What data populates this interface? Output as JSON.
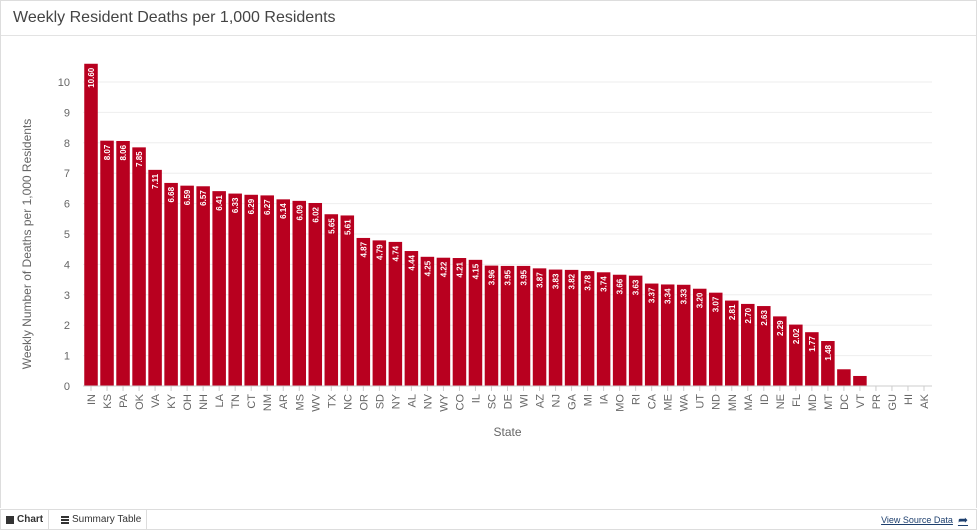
{
  "header": {
    "title": "Weekly Resident Deaths per 1,000 Residents"
  },
  "footer": {
    "chart_tab": "Chart",
    "table_tab": "Summary Table",
    "source_link": "View Source Data"
  },
  "colors": {
    "bar": "#b8001f",
    "grid": "#eeeeee"
  },
  "chart_data": {
    "type": "bar",
    "xlabel": "State",
    "ylabel": "Weekly Number of Deaths per 1,000 Residents",
    "ylim": [
      0,
      10
    ],
    "yticks": [
      0,
      1,
      2,
      3,
      4,
      5,
      6,
      7,
      8,
      9,
      10
    ],
    "categories": [
      "IN",
      "KS",
      "PA",
      "OK",
      "VA",
      "KY",
      "OH",
      "NH",
      "LA",
      "TN",
      "CT",
      "NM",
      "AR",
      "MS",
      "WV",
      "TX",
      "NC",
      "OR",
      "SD",
      "NY",
      "AL",
      "NV",
      "WY",
      "CO",
      "IL",
      "SC",
      "DE",
      "WI",
      "AZ",
      "NJ",
      "GA",
      "MI",
      "IA",
      "MO",
      "RI",
      "CA",
      "ME",
      "WA",
      "UT",
      "ND",
      "MN",
      "MA",
      "ID",
      "NE",
      "FL",
      "MD",
      "MT",
      "DC",
      "VT",
      "PR",
      "GU",
      "HI",
      "AK"
    ],
    "values": [
      10.6,
      8.07,
      8.06,
      7.85,
      7.11,
      6.68,
      6.59,
      6.57,
      6.41,
      6.33,
      6.29,
      6.27,
      6.14,
      6.09,
      6.02,
      5.65,
      5.61,
      4.87,
      4.79,
      4.74,
      4.44,
      4.25,
      4.22,
      4.21,
      4.15,
      3.96,
      3.95,
      3.95,
      3.87,
      3.83,
      3.82,
      3.78,
      3.74,
      3.66,
      3.63,
      3.37,
      3.34,
      3.33,
      3.2,
      3.07,
      2.81,
      2.7,
      2.63,
      2.29,
      2.02,
      1.77,
      1.48,
      0.55,
      0.33,
      0,
      0,
      0,
      0
    ],
    "data_labels": [
      "10.60",
      "8.07",
      "8.06",
      "7.85",
      "7.11",
      "6.68",
      "6.59",
      "6.57",
      "6.41",
      "6.33",
      "6.29",
      "6.27",
      "6.14",
      "6.09",
      "6.02",
      "5.65",
      "5.61",
      "4.87",
      "4.79",
      "4.74",
      "4.44",
      "4.25",
      "4.22",
      "4.21",
      "4.15",
      "3.96",
      "3.95",
      "3.95",
      "3.87",
      "3.83",
      "3.82",
      "3.78",
      "3.74",
      "3.66",
      "3.63",
      "3.37",
      "3.34",
      "3.33",
      "3.20",
      "3.07",
      "2.81",
      "2.70",
      "2.63",
      "2.29",
      "2.02",
      "1.77",
      "1.48",
      "",
      "",
      "",
      "",
      "",
      ""
    ],
    "grid": true,
    "legend": "none"
  }
}
